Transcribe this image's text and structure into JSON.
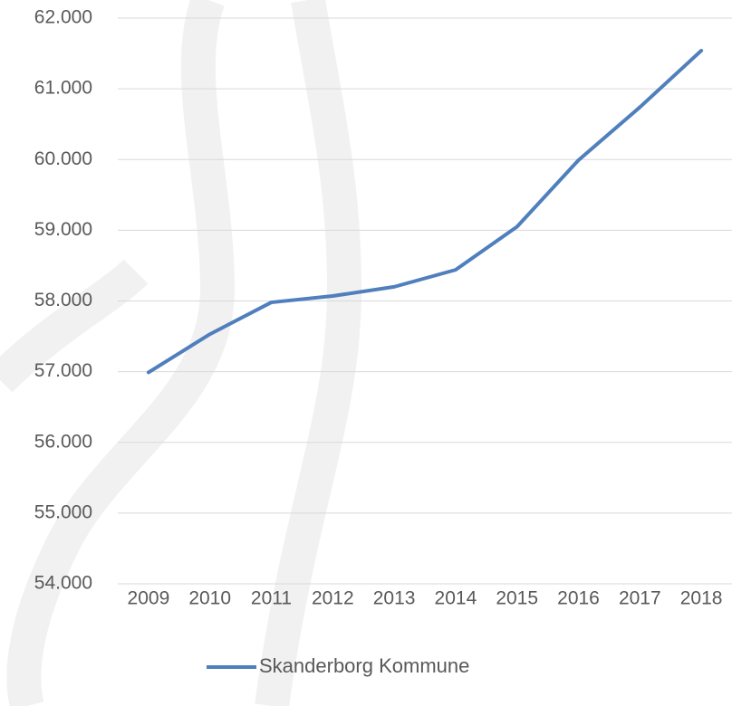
{
  "chart_data": {
    "type": "line",
    "categories": [
      "2009",
      "2010",
      "2011",
      "2012",
      "2013",
      "2014",
      "2015",
      "2016",
      "2017",
      "2018"
    ],
    "series": [
      {
        "name": "Skanderborg Kommune",
        "color": "#4f7fbc",
        "values": [
          56990,
          57530,
          57980,
          58070,
          58200,
          58440,
          59050,
          59990,
          60740,
          61540
        ]
      }
    ],
    "ylim": [
      54000,
      62000
    ],
    "yticks": [
      {
        "value": 54000,
        "label": "54.000"
      },
      {
        "value": 55000,
        "label": "55.000"
      },
      {
        "value": 56000,
        "label": "56.000"
      },
      {
        "value": 57000,
        "label": "57.000"
      },
      {
        "value": 58000,
        "label": "58.000"
      },
      {
        "value": 59000,
        "label": "59.000"
      },
      {
        "value": 60000,
        "label": "60.000"
      },
      {
        "value": 61000,
        "label": "61.000"
      },
      {
        "value": 62000,
        "label": "62.000"
      }
    ],
    "grid": true,
    "legend": "bottom"
  }
}
